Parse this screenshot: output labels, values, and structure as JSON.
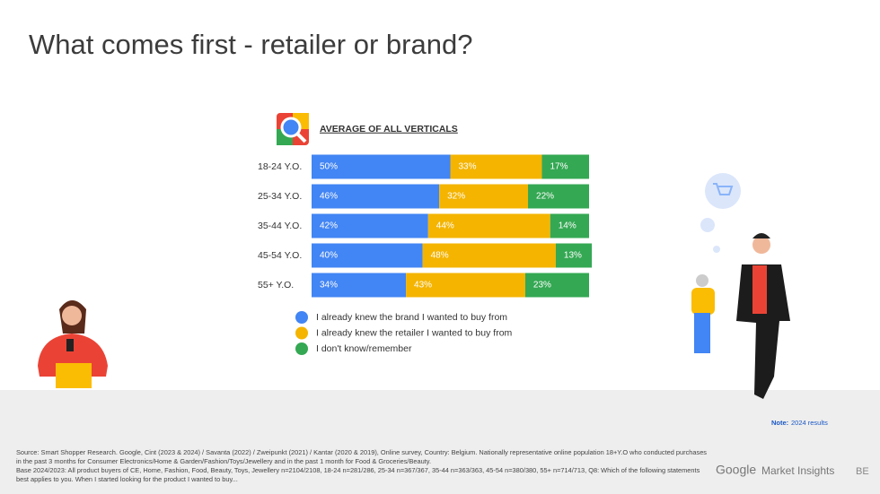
{
  "title": "What comes first - retailer or brand?",
  "chart_data": {
    "type": "stacked-bar-horizontal",
    "title": "AVERAGE OF ALL VERTICALS",
    "categories": [
      "18-24 Y.O.",
      "25-34 Y.O.",
      "35-44 Y.O.",
      "45-54 Y.O.",
      "55+ Y.O."
    ],
    "xlim": [
      0,
      100
    ],
    "series": [
      {
        "name": "I already knew the brand I wanted to buy from",
        "color": "#4285f4",
        "values": [
          50,
          46,
          42,
          40,
          34
        ],
        "value_labels": [
          "50%",
          "46%",
          "42%",
          "40%",
          "34%"
        ]
      },
      {
        "name": "I already knew the retailer I wanted to buy from",
        "color": "#f4b400",
        "values": [
          33,
          32,
          44,
          48,
          43
        ],
        "value_labels": [
          "33%",
          "32%",
          "44%",
          "48%",
          "43%"
        ]
      },
      {
        "name": "I don't know/remember",
        "color": "#34a853",
        "values": [
          17,
          22,
          14,
          13,
          23
        ],
        "value_labels": [
          "17%",
          "22%",
          "14%",
          "13%",
          "23%"
        ]
      }
    ]
  },
  "note": {
    "label": "Note:",
    "text": "2024 results"
  },
  "source": [
    "Source: Smart Shopper Research. Google, Cint (2023 & 2024) /  Savanta (2022) / Zweipunkt (2021) / Kantar (2020 & 2019), Online survey, Country: Belgium. Nationally representative online population 18+Y.O who conducted purchases in the past 3 months for Consumer Electronics/Home & Garden/Fashion/Toys/Jewellery and in the past 1 month for Food & Groceries/Beauty.",
    "Base 2024/2023: All product buyers of CE, Home, Fashion, Food, Beauty, Toys, Jewellery n=2104/2108, 18-24 n=281/286, 25-34 n=367/367, 35-44 n=363/363, 45-54 n=380/380, 55+ n=714/713, Q8: Which of the following statements best applies to you. When I started looking for the product I wanted to buy..."
  ],
  "brand": {
    "logo": "Google",
    "name": "Market Insights",
    "country": "BE"
  }
}
